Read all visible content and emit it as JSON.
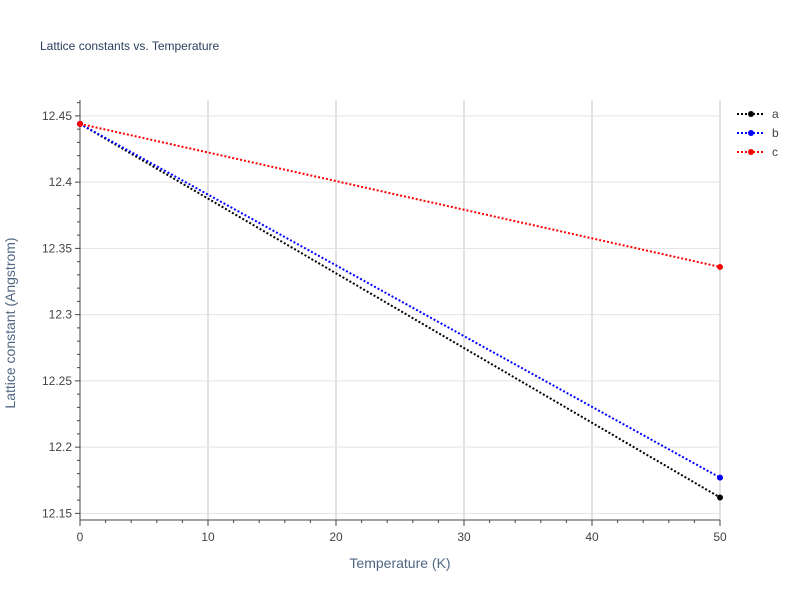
{
  "chart_data": {
    "type": "line",
    "title": "Lattice constants vs. Temperature",
    "xlabel": "Temperature (K)",
    "ylabel": "Lattice constant (Angstrom)",
    "xlim": [
      0,
      50
    ],
    "ylim": [
      12.145,
      12.462
    ],
    "x_ticks": [
      0,
      10,
      20,
      30,
      40,
      50
    ],
    "x_tick_labels": [
      "0",
      "10",
      "20",
      "30",
      "40",
      "50"
    ],
    "y_ticks": [
      12.15,
      12.2,
      12.25,
      12.3,
      12.35,
      12.4,
      12.45
    ],
    "y_tick_labels": [
      "12.15",
      "12.2",
      "12.25",
      "12.3",
      "12.35",
      "12.4",
      "12.45"
    ],
    "grid": true,
    "line_style": "dotted",
    "legend_position": "top-right",
    "series": [
      {
        "name": "a",
        "color": "#000000",
        "x": [
          0,
          50
        ],
        "y": [
          12.444,
          12.162
        ]
      },
      {
        "name": "b",
        "color": "#0000ff",
        "x": [
          0,
          50
        ],
        "y": [
          12.444,
          12.177
        ]
      },
      {
        "name": "c",
        "color": "#ff0000",
        "x": [
          0,
          50
        ],
        "y": [
          12.444,
          12.336
        ]
      }
    ]
  }
}
